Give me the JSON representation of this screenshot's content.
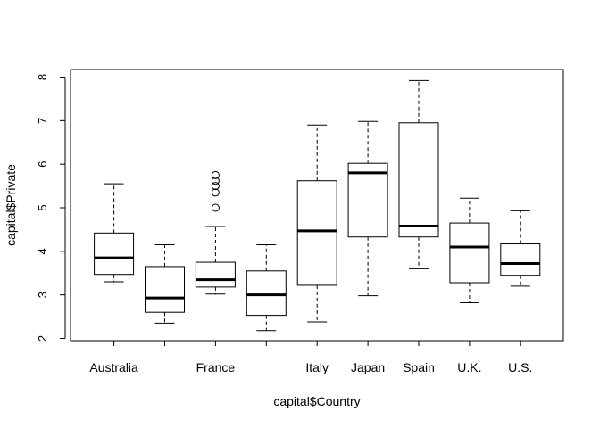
{
  "chart_data": {
    "type": "boxplot",
    "xlabel": "capital$Country",
    "ylabel": "capital$Private",
    "ylim": [
      2,
      8
    ],
    "yticks": [
      "2",
      "3",
      "4",
      "5",
      "6",
      "7",
      "8"
    ],
    "categories": [
      "Australia",
      "",
      "France",
      "",
      "Italy",
      "Japan",
      "Spain",
      "U.K.",
      "U.S."
    ],
    "boxes": [
      {
        "min": 3.3,
        "q1": 3.47,
        "median": 3.85,
        "q3": 4.42,
        "max": 5.55,
        "outliers": []
      },
      {
        "min": 2.35,
        "q1": 2.6,
        "median": 2.93,
        "q3": 3.65,
        "max": 4.15,
        "outliers": []
      },
      {
        "min": 3.02,
        "q1": 3.18,
        "median": 3.35,
        "q3": 3.75,
        "max": 4.57,
        "outliers": [
          5.0,
          5.35,
          5.5,
          5.62,
          5.75
        ]
      },
      {
        "min": 2.18,
        "q1": 2.53,
        "median": 3.0,
        "q3": 3.55,
        "max": 4.15,
        "outliers": []
      },
      {
        "min": 2.38,
        "q1": 3.22,
        "median": 4.47,
        "q3": 5.62,
        "max": 6.9,
        "outliers": []
      },
      {
        "min": 2.98,
        "q1": 4.33,
        "median": 5.8,
        "q3": 6.02,
        "max": 6.98,
        "outliers": []
      },
      {
        "min": 3.6,
        "q1": 4.33,
        "median": 4.58,
        "q3": 6.95,
        "max": 7.92,
        "outliers": []
      },
      {
        "min": 2.82,
        "q1": 3.28,
        "median": 4.1,
        "q3": 4.65,
        "max": 5.22,
        "outliers": []
      },
      {
        "min": 3.2,
        "q1": 3.45,
        "median": 3.72,
        "q3": 4.17,
        "max": 4.93,
        "outliers": []
      }
    ]
  }
}
